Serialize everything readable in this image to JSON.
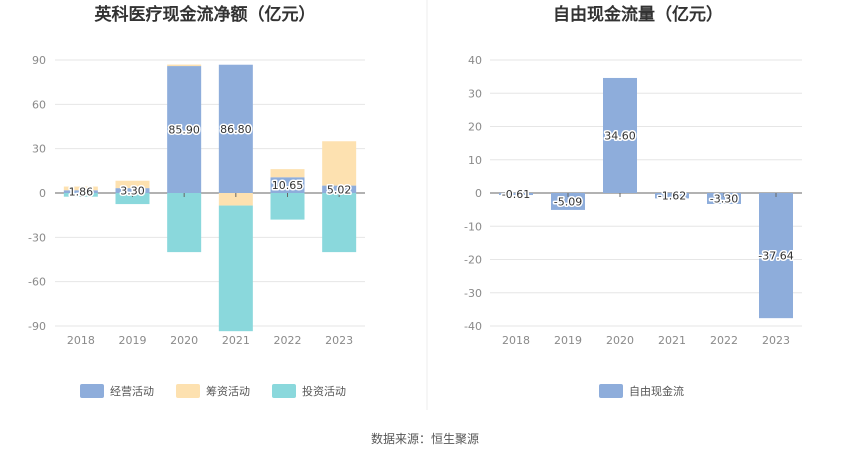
{
  "source_label": "数据来源：恒生聚源",
  "chart_data": [
    {
      "type": "bar",
      "stacked": true,
      "title": "英科医疗现金流净额（亿元）",
      "categories": [
        "2018",
        "2019",
        "2020",
        "2021",
        "2022",
        "2023"
      ],
      "ylim": [
        -90,
        90
      ],
      "yticks": [
        90,
        60,
        30,
        0,
        -30,
        -60,
        -90
      ],
      "grid": true,
      "legend_position": "bottom",
      "series": [
        {
          "name": "经营活动",
          "color": "#8eaddb",
          "values": [
            1.86,
            3.3,
            85.9,
            86.8,
            10.65,
            5.02
          ],
          "labels": [
            "1.86",
            "3.30",
            "85.90",
            "86.80",
            "10.65",
            "5.02"
          ]
        },
        {
          "name": "筹资活动",
          "color": "#fde1b0",
          "values": [
            2.5,
            5.0,
            1.0,
            -8.5,
            5.5,
            30.0
          ]
        },
        {
          "name": "投资活动",
          "color": "#8ad8dc",
          "values": [
            -2.5,
            -7.5,
            -40.0,
            -85.0,
            -18.0,
            -40.0
          ]
        }
      ]
    },
    {
      "type": "bar",
      "title": "自由现金流量（亿元）",
      "categories": [
        "2018",
        "2019",
        "2020",
        "2021",
        "2022",
        "2023"
      ],
      "ylim": [
        -40,
        40
      ],
      "yticks": [
        40,
        30,
        20,
        10,
        0,
        -10,
        -20,
        -30,
        -40
      ],
      "grid": true,
      "legend_position": "bottom",
      "series": [
        {
          "name": "自由现金流",
          "color": "#8eaddb",
          "values": [
            -0.61,
            -5.09,
            34.6,
            -1.62,
            -3.3,
            -37.64
          ],
          "labels": [
            "-0.61",
            "-5.09",
            "34.60",
            "-1.62",
            "-3.30",
            "-37.64"
          ]
        }
      ]
    }
  ]
}
